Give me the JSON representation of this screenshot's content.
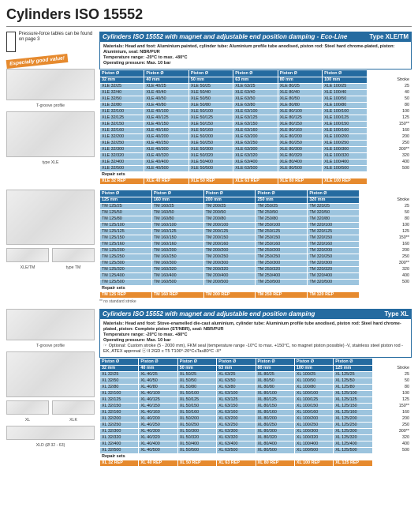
{
  "page_title": "Cylinders ISO 15552",
  "pressure_note": "Pressure-force tables can be found on page 3",
  "badge": "Especially good value!",
  "captions": {
    "tgroove": "T-groove profile",
    "typeXLE": "type XLE",
    "xleTM": "XLE/TM",
    "typeTM": "type TM",
    "tgroove2": "T-groove profile",
    "xl": "XL",
    "xlk": "XLK",
    "xld": "XLD (Ø 32 - 63)"
  },
  "footnote_nostd": "** no standard stroke",
  "sec1": {
    "banner_title": "Cylinders ISO 15552 with magnet and adjustable end position damping - Eco-Line",
    "banner_type": "Type XLE/TM",
    "desc_lines": [
      "Materials: Head and foot: Aluminium painted, cylinder tube: Aluminium profile tube anodised, piston rod: Steel hard chrome-plated, piston: Aluminium, seal: NBR/PUR",
      "Temperature range: -20°C to max. +80°C",
      "Operating pressure: Max. 10 bar"
    ],
    "headers": [
      "Piston Ø",
      "Piston Ø",
      "Piston Ø",
      "Piston Ø",
      "Piston Ø",
      "Piston Ø",
      ""
    ],
    "sizes": [
      "32 mm",
      "40 mm",
      "50 mm",
      "63 mm",
      "80 mm",
      "100 mm",
      "Stroke"
    ],
    "rows": [
      [
        "XLE 32/25",
        "XLE 40/25",
        "XLE 50/25",
        "XLE 63/25",
        "XLE 80/25",
        "XLE 100/25",
        "25"
      ],
      [
        "XLE 32/40",
        "XLE 40/40",
        "XLE 50/40",
        "XLE 63/40",
        "XLE 80/40",
        "XLE 100/40",
        "40"
      ],
      [
        "XLE 32/50",
        "XLE 40/50",
        "XLE 50/50",
        "XLE 63/50",
        "XLE 80/50",
        "XLE 100/50",
        "50"
      ],
      [
        "XLE 32/80",
        "XLE 40/80",
        "XLE 50/80",
        "XLE 63/80",
        "XLE 80/80",
        "XLE 100/80",
        "80"
      ],
      [
        "XLE 32/100",
        "XLE 40/100",
        "XLE 50/100",
        "XLE 63/100",
        "XLE 80/100",
        "XLE 100/100",
        "100"
      ],
      [
        "XLE 32/125",
        "XLE 40/125",
        "XLE 50/125",
        "XLE 63/125",
        "XLE 80/125",
        "XLE 100/125",
        "125"
      ],
      [
        "XLE 32/150",
        "XLE 40/150",
        "XLE 50/150",
        "XLE 63/150",
        "XLE 80/150",
        "XLE 100/150",
        "150**"
      ],
      [
        "XLE 32/160",
        "XLE 40/160",
        "XLE 50/160",
        "XLE 63/160",
        "XLE 80/160",
        "XLE 100/160",
        "160"
      ],
      [
        "XLE 32/200",
        "XLE 40/200",
        "XLE 50/200",
        "XLE 63/200",
        "XLE 80/200",
        "XLE 100/200",
        "200"
      ],
      [
        "XLE 32/250",
        "XLE 40/250",
        "XLE 50/250",
        "XLE 63/250",
        "XLE 80/250",
        "XLE 100/250",
        "250"
      ],
      [
        "XLE 32/300",
        "XLE 40/300",
        "XLE 50/300",
        "XLE 63/300",
        "XLE 80/300",
        "XLE 100/300",
        "300**"
      ],
      [
        "XLE 32/320",
        "XLE 40/320",
        "XLE 50/320",
        "XLE 63/320",
        "XLE 80/320",
        "XLE 100/320",
        "320"
      ],
      [
        "XLE 32/400",
        "XLE 40/400",
        "XLE 50/400",
        "XLE 63/400",
        "XLE 80/400",
        "XLE 100/400",
        "400"
      ],
      [
        "XLE 32/500",
        "XLE 40/500",
        "XLE 50/500",
        "XLE 63/500",
        "XLE 80/500",
        "XLE 100/500",
        "500"
      ]
    ],
    "repair_label": "Repair sets",
    "repair": [
      "XLE 32 REP",
      "XLE 40 REP",
      "XLE 50 REP",
      "XLE 63 REP",
      "XLE 80 REP",
      "XLE 100 REP",
      ""
    ]
  },
  "sec2": {
    "headers": [
      "Piston Ø",
      "Piston Ø",
      "Piston Ø",
      "Piston Ø",
      "Piston Ø",
      ""
    ],
    "sizes": [
      "125 mm",
      "160 mm",
      "200 mm",
      "250 mm",
      "320 mm",
      "Stroke"
    ],
    "rows": [
      [
        "TM 125/25",
        "TM 160/25",
        "TM 200/25",
        "TM 250/25",
        "TM 320/25",
        "25"
      ],
      [
        "TM 125/50",
        "TM 160/50",
        "TM 200/50",
        "TM 250/50",
        "TM 320/50",
        "50"
      ],
      [
        "TM 125/80",
        "TM 160/80",
        "TM 200/80",
        "TM 250/80",
        "TM 320/80",
        "80"
      ],
      [
        "TM 125/100",
        "TM 160/100",
        "TM 200/100",
        "TM 250/100",
        "TM 320/100",
        "100"
      ],
      [
        "TM 125/125",
        "TM 160/125",
        "TM 200/125",
        "TM 250/125",
        "TM 320/125",
        "125"
      ],
      [
        "TM 125/150",
        "TM 160/150",
        "TM 200/150",
        "TM 250/150",
        "TM 320/150",
        "150**"
      ],
      [
        "TM 125/160",
        "TM 160/160",
        "TM 200/160",
        "TM 250/160",
        "TM 320/160",
        "160"
      ],
      [
        "TM 125/200",
        "TM 160/200",
        "TM 200/200",
        "TM 250/200",
        "TM 320/200",
        "200"
      ],
      [
        "TM 125/250",
        "TM 160/250",
        "TM 200/250",
        "TM 250/250",
        "TM 320/250",
        "250"
      ],
      [
        "TM 125/300",
        "TM 160/300",
        "TM 200/300",
        "TM 250/300",
        "TM 320/300",
        "300**"
      ],
      [
        "TM 125/320",
        "TM 160/320",
        "TM 200/320",
        "TM 250/320",
        "TM 320/320",
        "320"
      ],
      [
        "TM 125/400",
        "TM 160/400",
        "TM 200/400",
        "TM 250/400",
        "TM 320/400",
        "400"
      ],
      [
        "TM 125/500",
        "TM 160/500",
        "TM 200/500",
        "TM 250/500",
        "TM 320/500",
        "500"
      ]
    ],
    "repair_label": "Repair sets",
    "repair": [
      "TM 125 REP",
      "TM 160 REP",
      "TM 200 REP",
      "TM 250 REP",
      "TM 320 REP",
      ""
    ]
  },
  "sec3": {
    "banner_title": "Cylinders ISO 15552 with magnet and adjustable end position damping",
    "banner_type": "Type XL",
    "desc_lines": [
      "Materials: Head and foot: Stove-enamelled die-cast aluminium, cylinder tube: Aluminium profile tube anodised, piston rod: Steel hard chrome-plated, piston: Complete piston (ST/NBR), seal: NBR/PUR",
      "Temperature range: -20°C to max. +80°C",
      "Operating pressure: Max. 10 bar",
      "☞ Optional: Custom stroke (5 - 2000 mm), FKM seal (temperature range -10°C to max. +150°C, no magnet piston possible) -V, stainless steel piston rod -EK, ATEX approval ⓔ II 2GD c T5 T100°-20°C≤Ta≤80°C -X*"
    ],
    "headers": [
      "Piston Ø",
      "Piston Ø",
      "Piston Ø",
      "Piston Ø",
      "Piston Ø",
      "Piston Ø",
      "Piston Ø",
      ""
    ],
    "sizes": [
      "32 mm",
      "40 mm",
      "50 mm",
      "63 mm",
      "80 mm",
      "100 mm",
      "125 mm",
      "Stroke"
    ],
    "rows": [
      [
        "XL 32/25",
        "XL 40/25",
        "XL 50/25",
        "XL 63/25",
        "XL 80/25",
        "XL 100/25",
        "XL 125/25",
        "25"
      ],
      [
        "XL 32/50",
        "XL 40/50",
        "XL 50/50",
        "XL 63/50",
        "XL 80/50",
        "XL 100/50",
        "XL 125/50",
        "50"
      ],
      [
        "XL 32/80",
        "XL 40/80",
        "XL 50/80",
        "XL 63/80",
        "XL 80/80",
        "XL 100/80",
        "XL 125/80",
        "80"
      ],
      [
        "XL 32/100",
        "XL 40/100",
        "XL 50/100",
        "XL 63/100",
        "XL 80/100",
        "XL 100/100",
        "XL 125/100",
        "100"
      ],
      [
        "XL 32/125",
        "XL 40/125",
        "XL 50/125",
        "XL 63/125",
        "XL 80/125",
        "XL 100/125",
        "XL 125/125",
        "125"
      ],
      [
        "XL 32/150",
        "XL 40/150",
        "XL 50/150",
        "XL 63/150",
        "XL 80/150",
        "XL 100/150",
        "XL 125/150",
        "150**"
      ],
      [
        "XL 32/160",
        "XL 40/160",
        "XL 50/160",
        "XL 63/160",
        "XL 80/160",
        "XL 100/160",
        "XL 125/160",
        "160"
      ],
      [
        "XL 32/200",
        "XL 40/200",
        "XL 50/200",
        "XL 63/200",
        "XL 80/200",
        "XL 100/200",
        "XL 125/200",
        "200"
      ],
      [
        "XL 32/250",
        "XL 40/250",
        "XL 50/250",
        "XL 63/250",
        "XL 80/250",
        "XL 100/250",
        "XL 125/250",
        "250"
      ],
      [
        "XL 32/300",
        "XL 40/300",
        "XL 50/300",
        "XL 63/300",
        "XL 80/300",
        "XL 100/300",
        "XL 125/300",
        "300**"
      ],
      [
        "XL 32/320",
        "XL 40/320",
        "XL 50/320",
        "XL 63/320",
        "XL 80/320",
        "XL 100/320",
        "XL 125/320",
        "320"
      ],
      [
        "XL 32/400",
        "XL 40/400",
        "XL 50/400",
        "XL 63/400",
        "XL 80/400",
        "XL 100/400",
        "XL 125/400",
        "400"
      ],
      [
        "XL 32/500",
        "XL 40/500",
        "XL 50/500",
        "XL 63/500",
        "XL 80/500",
        "XL 100/500",
        "XL 125/500",
        "500"
      ]
    ],
    "repair_label": "Repair sets",
    "repair": [
      "XL 32 REP",
      "XL 40 REP",
      "XL 50 REP",
      "XL 63 REP",
      "XL 80 REP",
      "XL 100 REP",
      "XL 125 REP",
      ""
    ]
  }
}
